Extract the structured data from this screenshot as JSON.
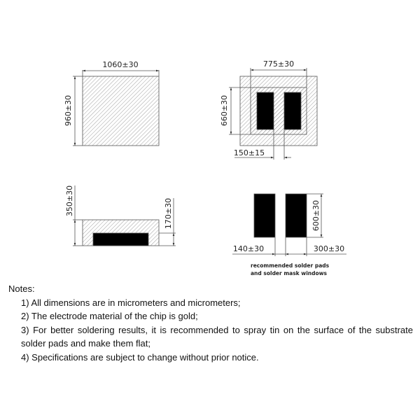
{
  "drawings": {
    "top_view": {
      "width_label": "1060±30",
      "height_label": "960±30"
    },
    "bottom_view": {
      "mask_width_label": "775±30",
      "mask_height_label": "660±30",
      "gap_label": "150±15"
    },
    "side_view": {
      "total_height_label": "350±30",
      "pad_height_label": "170±30"
    },
    "solder_pads": {
      "pad_height_label": "600±30",
      "gap_label": "140±30",
      "pad_width_label": "300±30",
      "caption_line1": "recommended solder pads",
      "caption_line2": "and solder mask windows"
    }
  },
  "colors": {
    "line": "#555555",
    "pad": "#000000",
    "hatch": "#888888"
  },
  "notes": {
    "heading": "Notes:",
    "items": [
      "1) All dimensions are in micrometers and micrometers;",
      "2) The electrode material of the chip is gold;",
      "3) For better soldering results, it is recommended to spray tin on the surface of the substrate solder pads and make them flat;",
      "4) Specifications are subject to change without prior notice."
    ]
  }
}
